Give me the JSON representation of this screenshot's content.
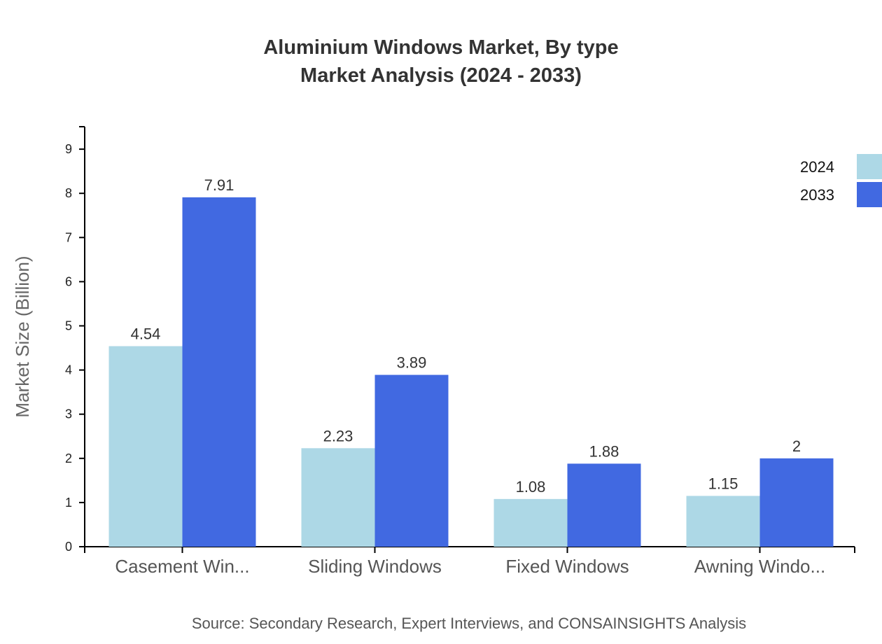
{
  "chart_data": {
    "type": "bar",
    "title": "Aluminium Windows Market, By type",
    "subtitle": "Market Analysis (2024 - 2033)",
    "xlabel": "",
    "ylabel": "Market Size (Billion)",
    "ylim": [
      0,
      9.5
    ],
    "yticks": [
      0,
      1,
      2,
      3,
      4,
      5,
      6,
      7,
      8,
      9
    ],
    "categories": [
      "Casement Win...",
      "Sliding Windows",
      "Fixed Windows",
      "Awning Windo..."
    ],
    "series": [
      {
        "name": "2024",
        "color": "#add8e6",
        "values": [
          4.54,
          2.23,
          1.08,
          1.15
        ]
      },
      {
        "name": "2033",
        "color": "#4169e1",
        "values": [
          7.91,
          3.89,
          1.88,
          2
        ]
      }
    ],
    "grid": false,
    "legend_position": "top-right",
    "source": "Source: Secondary Research, Expert Interviews, and CONSAINSIGHTS Analysis"
  }
}
